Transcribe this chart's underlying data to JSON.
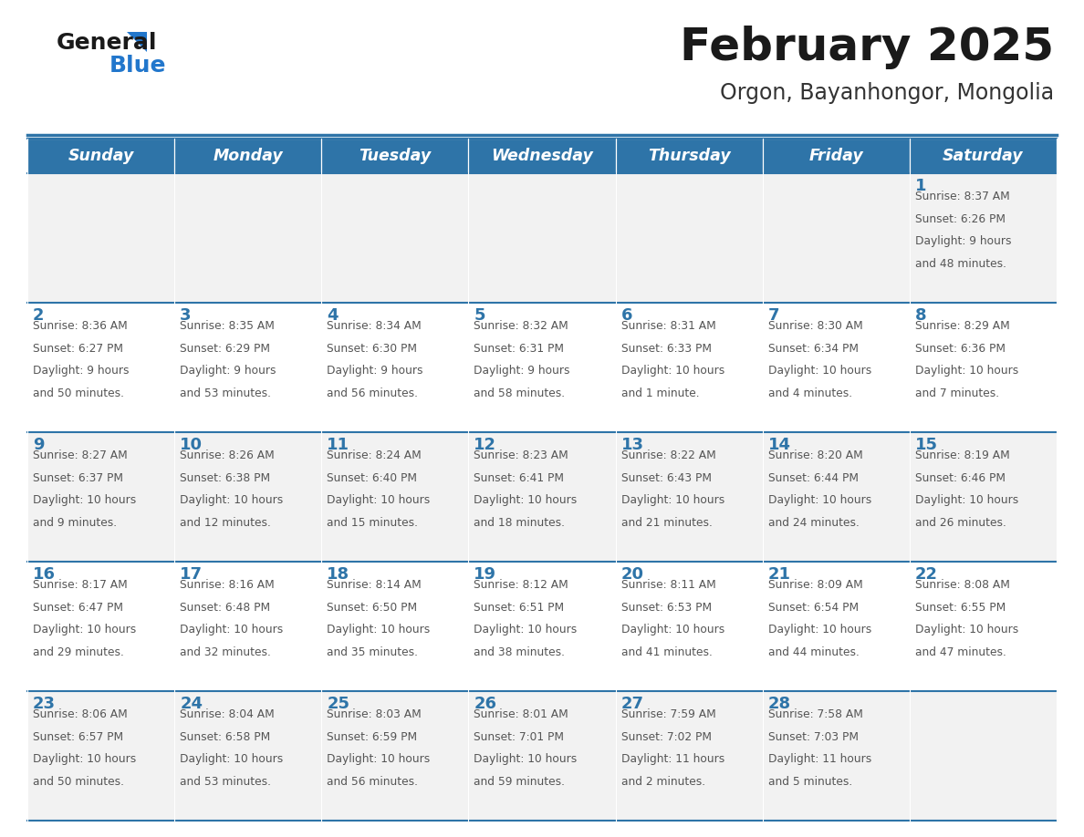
{
  "title": "February 2025",
  "subtitle": "Orgon, Bayanhongor, Mongolia",
  "days_of_week": [
    "Sunday",
    "Monday",
    "Tuesday",
    "Wednesday",
    "Thursday",
    "Friday",
    "Saturday"
  ],
  "header_bg": "#2E74A8",
  "header_text_color": "#FFFFFF",
  "cell_bg_light": "#F2F2F2",
  "cell_bg_white": "#FFFFFF",
  "cell_text_color": "#555555",
  "day_number_color": "#2E74A8",
  "separator_color": "#2E74A8",
  "title_color": "#1a1a1a",
  "subtitle_color": "#333333",
  "logo_general_color": "#1a1a1a",
  "logo_blue_color": "#2277CC",
  "logo_triangle_color": "#2277CC",
  "calendar_data": [
    {
      "day": 1,
      "row": 0,
      "col": 6,
      "sunrise": "8:37 AM",
      "sunset": "6:26 PM",
      "daylight_h": "9 hours",
      "daylight_m": "48 minutes."
    },
    {
      "day": 2,
      "row": 1,
      "col": 0,
      "sunrise": "8:36 AM",
      "sunset": "6:27 PM",
      "daylight_h": "9 hours",
      "daylight_m": "50 minutes."
    },
    {
      "day": 3,
      "row": 1,
      "col": 1,
      "sunrise": "8:35 AM",
      "sunset": "6:29 PM",
      "daylight_h": "9 hours",
      "daylight_m": "53 minutes."
    },
    {
      "day": 4,
      "row": 1,
      "col": 2,
      "sunrise": "8:34 AM",
      "sunset": "6:30 PM",
      "daylight_h": "9 hours",
      "daylight_m": "56 minutes."
    },
    {
      "day": 5,
      "row": 1,
      "col": 3,
      "sunrise": "8:32 AM",
      "sunset": "6:31 PM",
      "daylight_h": "9 hours",
      "daylight_m": "58 minutes."
    },
    {
      "day": 6,
      "row": 1,
      "col": 4,
      "sunrise": "8:31 AM",
      "sunset": "6:33 PM",
      "daylight_h": "10 hours",
      "daylight_m": "1 minute."
    },
    {
      "day": 7,
      "row": 1,
      "col": 5,
      "sunrise": "8:30 AM",
      "sunset": "6:34 PM",
      "daylight_h": "10 hours",
      "daylight_m": "4 minutes."
    },
    {
      "day": 8,
      "row": 1,
      "col": 6,
      "sunrise": "8:29 AM",
      "sunset": "6:36 PM",
      "daylight_h": "10 hours",
      "daylight_m": "7 minutes."
    },
    {
      "day": 9,
      "row": 2,
      "col": 0,
      "sunrise": "8:27 AM",
      "sunset": "6:37 PM",
      "daylight_h": "10 hours",
      "daylight_m": "9 minutes."
    },
    {
      "day": 10,
      "row": 2,
      "col": 1,
      "sunrise": "8:26 AM",
      "sunset": "6:38 PM",
      "daylight_h": "10 hours",
      "daylight_m": "12 minutes."
    },
    {
      "day": 11,
      "row": 2,
      "col": 2,
      "sunrise": "8:24 AM",
      "sunset": "6:40 PM",
      "daylight_h": "10 hours",
      "daylight_m": "15 minutes."
    },
    {
      "day": 12,
      "row": 2,
      "col": 3,
      "sunrise": "8:23 AM",
      "sunset": "6:41 PM",
      "daylight_h": "10 hours",
      "daylight_m": "18 minutes."
    },
    {
      "day": 13,
      "row": 2,
      "col": 4,
      "sunrise": "8:22 AM",
      "sunset": "6:43 PM",
      "daylight_h": "10 hours",
      "daylight_m": "21 minutes."
    },
    {
      "day": 14,
      "row": 2,
      "col": 5,
      "sunrise": "8:20 AM",
      "sunset": "6:44 PM",
      "daylight_h": "10 hours",
      "daylight_m": "24 minutes."
    },
    {
      "day": 15,
      "row": 2,
      "col": 6,
      "sunrise": "8:19 AM",
      "sunset": "6:46 PM",
      "daylight_h": "10 hours",
      "daylight_m": "26 minutes."
    },
    {
      "day": 16,
      "row": 3,
      "col": 0,
      "sunrise": "8:17 AM",
      "sunset": "6:47 PM",
      "daylight_h": "10 hours",
      "daylight_m": "29 minutes."
    },
    {
      "day": 17,
      "row": 3,
      "col": 1,
      "sunrise": "8:16 AM",
      "sunset": "6:48 PM",
      "daylight_h": "10 hours",
      "daylight_m": "32 minutes."
    },
    {
      "day": 18,
      "row": 3,
      "col": 2,
      "sunrise": "8:14 AM",
      "sunset": "6:50 PM",
      "daylight_h": "10 hours",
      "daylight_m": "35 minutes."
    },
    {
      "day": 19,
      "row": 3,
      "col": 3,
      "sunrise": "8:12 AM",
      "sunset": "6:51 PM",
      "daylight_h": "10 hours",
      "daylight_m": "38 minutes."
    },
    {
      "day": 20,
      "row": 3,
      "col": 4,
      "sunrise": "8:11 AM",
      "sunset": "6:53 PM",
      "daylight_h": "10 hours",
      "daylight_m": "41 minutes."
    },
    {
      "day": 21,
      "row": 3,
      "col": 5,
      "sunrise": "8:09 AM",
      "sunset": "6:54 PM",
      "daylight_h": "10 hours",
      "daylight_m": "44 minutes."
    },
    {
      "day": 22,
      "row": 3,
      "col": 6,
      "sunrise": "8:08 AM",
      "sunset": "6:55 PM",
      "daylight_h": "10 hours",
      "daylight_m": "47 minutes."
    },
    {
      "day": 23,
      "row": 4,
      "col": 0,
      "sunrise": "8:06 AM",
      "sunset": "6:57 PM",
      "daylight_h": "10 hours",
      "daylight_m": "50 minutes."
    },
    {
      "day": 24,
      "row": 4,
      "col": 1,
      "sunrise": "8:04 AM",
      "sunset": "6:58 PM",
      "daylight_h": "10 hours",
      "daylight_m": "53 minutes."
    },
    {
      "day": 25,
      "row": 4,
      "col": 2,
      "sunrise": "8:03 AM",
      "sunset": "6:59 PM",
      "daylight_h": "10 hours",
      "daylight_m": "56 minutes."
    },
    {
      "day": 26,
      "row": 4,
      "col": 3,
      "sunrise": "8:01 AM",
      "sunset": "7:01 PM",
      "daylight_h": "10 hours",
      "daylight_m": "59 minutes."
    },
    {
      "day": 27,
      "row": 4,
      "col": 4,
      "sunrise": "7:59 AM",
      "sunset": "7:02 PM",
      "daylight_h": "11 hours",
      "daylight_m": "2 minutes."
    },
    {
      "day": 28,
      "row": 4,
      "col": 5,
      "sunrise": "7:58 AM",
      "sunset": "7:03 PM",
      "daylight_h": "11 hours",
      "daylight_m": "5 minutes."
    }
  ]
}
